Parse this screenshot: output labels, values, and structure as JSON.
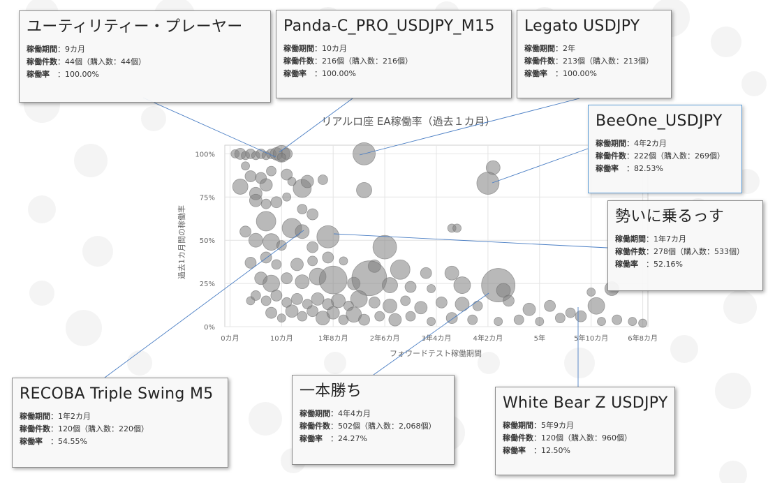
{
  "chart_data": {
    "type": "scatter",
    "title": "リアルロ座 EA稼働率（過去１カ月）",
    "xlabel": "フォワードテスト稼働期間",
    "ylabel": "過去1カ月間の稼働率",
    "x_unit": "months",
    "x_ticks": [
      {
        "value": 0,
        "label": "0カ月"
      },
      {
        "value": 10,
        "label": "10カ月"
      },
      {
        "value": 20,
        "label": "1年8カ月"
      },
      {
        "value": 30,
        "label": "2年6カ月"
      },
      {
        "value": 40,
        "label": "3年4カ月"
      },
      {
        "value": 50,
        "label": "4年2カ月"
      },
      {
        "value": 60,
        "label": "5年"
      },
      {
        "value": 70,
        "label": "5年10カ月"
      },
      {
        "value": 80,
        "label": "6年8カ月"
      }
    ],
    "y_ticks": [
      {
        "value": 0,
        "label": "0%"
      },
      {
        "value": 25,
        "label": "25%"
      },
      {
        "value": 50,
        "label": "50%"
      },
      {
        "value": 75,
        "label": "75%"
      },
      {
        "value": 100,
        "label": "100%"
      }
    ],
    "xlim": [
      -1,
      81
    ],
    "ylim": [
      0,
      105
    ],
    "grid": true,
    "bubble_color": "#7f7f7f",
    "points": [
      {
        "x": 1,
        "y": 100,
        "s": 6
      },
      {
        "x": 2,
        "y": 100,
        "s": 8
      },
      {
        "x": 3,
        "y": 99,
        "s": 6
      },
      {
        "x": 4,
        "y": 100,
        "s": 7
      },
      {
        "x": 5,
        "y": 99,
        "s": 6
      },
      {
        "x": 6,
        "y": 100,
        "s": 7
      },
      {
        "x": 7,
        "y": 99,
        "s": 6
      },
      {
        "x": 8,
        "y": 100,
        "s": 7
      },
      {
        "x": 9,
        "y": 100,
        "s": 9
      },
      {
        "x": 10,
        "y": 100,
        "s": 12
      },
      {
        "x": 11,
        "y": 100,
        "s": 8
      },
      {
        "x": 10,
        "y": 98,
        "s": 6
      },
      {
        "x": 26,
        "y": 100,
        "s": 16
      },
      {
        "x": 51,
        "y": 92,
        "s": 10
      },
      {
        "x": 50,
        "y": 83,
        "s": 16
      },
      {
        "x": 3,
        "y": 93,
        "s": 6
      },
      {
        "x": 4,
        "y": 87,
        "s": 8
      },
      {
        "x": 2,
        "y": 81,
        "s": 11
      },
      {
        "x": 5,
        "y": 77,
        "s": 9
      },
      {
        "x": 6,
        "y": 86,
        "s": 8
      },
      {
        "x": 7,
        "y": 82,
        "s": 9
      },
      {
        "x": 8,
        "y": 90,
        "s": 7
      },
      {
        "x": 11,
        "y": 88,
        "s": 8
      },
      {
        "x": 12,
        "y": 84,
        "s": 6
      },
      {
        "x": 14,
        "y": 80,
        "s": 13
      },
      {
        "x": 15,
        "y": 84,
        "s": 9
      },
      {
        "x": 18,
        "y": 85,
        "s": 7
      },
      {
        "x": 5,
        "y": 73,
        "s": 9
      },
      {
        "x": 7,
        "y": 71,
        "s": 7
      },
      {
        "x": 9,
        "y": 72,
        "s": 8
      },
      {
        "x": 11,
        "y": 75,
        "s": 6
      },
      {
        "x": 26,
        "y": 79,
        "s": 11
      },
      {
        "x": 14,
        "y": 68,
        "s": 7
      },
      {
        "x": 16,
        "y": 65,
        "s": 8
      },
      {
        "x": 7,
        "y": 61,
        "s": 14
      },
      {
        "x": 3,
        "y": 55,
        "s": 8
      },
      {
        "x": 5,
        "y": 50,
        "s": 10
      },
      {
        "x": 8,
        "y": 49,
        "s": 12
      },
      {
        "x": 12,
        "y": 57,
        "s": 14
      },
      {
        "x": 14,
        "y": 55,
        "s": 10
      },
      {
        "x": 19,
        "y": 52,
        "s": 16
      },
      {
        "x": 10,
        "y": 47,
        "s": 7
      },
      {
        "x": 16,
        "y": 46,
        "s": 8
      },
      {
        "x": 30,
        "y": 46,
        "s": 17
      },
      {
        "x": 43,
        "y": 57,
        "s": 6
      },
      {
        "x": 44,
        "y": 57,
        "s": 6
      },
      {
        "x": 4,
        "y": 37,
        "s": 8
      },
      {
        "x": 7,
        "y": 40,
        "s": 8
      },
      {
        "x": 9,
        "y": 36,
        "s": 7
      },
      {
        "x": 13,
        "y": 36,
        "s": 9
      },
      {
        "x": 16,
        "y": 38,
        "s": 7
      },
      {
        "x": 19,
        "y": 40,
        "s": 8
      },
      {
        "x": 22,
        "y": 38,
        "s": 6
      },
      {
        "x": 28,
        "y": 35,
        "s": 9
      },
      {
        "x": 33,
        "y": 33,
        "s": 14
      },
      {
        "x": 38,
        "y": 31,
        "s": 8
      },
      {
        "x": 43,
        "y": 31,
        "s": 10
      },
      {
        "x": 6,
        "y": 28,
        "s": 9
      },
      {
        "x": 8,
        "y": 25,
        "s": 12
      },
      {
        "x": 11,
        "y": 28,
        "s": 8
      },
      {
        "x": 14,
        "y": 26,
        "s": 10
      },
      {
        "x": 17,
        "y": 29,
        "s": 12
      },
      {
        "x": 20,
        "y": 27,
        "s": 20
      },
      {
        "x": 24,
        "y": 25,
        "s": 9
      },
      {
        "x": 27,
        "y": 28,
        "s": 25
      },
      {
        "x": 31,
        "y": 24,
        "s": 11
      },
      {
        "x": 35,
        "y": 23,
        "s": 8
      },
      {
        "x": 39,
        "y": 22,
        "s": 6
      },
      {
        "x": 45,
        "y": 24,
        "s": 12
      },
      {
        "x": 52,
        "y": 24,
        "s": 24
      },
      {
        "x": 53,
        "y": 21,
        "s": 10
      },
      {
        "x": 70,
        "y": 20,
        "s": 6
      },
      {
        "x": 74,
        "y": 22,
        "s": 10
      },
      {
        "x": 4,
        "y": 15,
        "s": 6
      },
      {
        "x": 5,
        "y": 18,
        "s": 7
      },
      {
        "x": 7,
        "y": 15,
        "s": 7
      },
      {
        "x": 9,
        "y": 18,
        "s": 8
      },
      {
        "x": 11,
        "y": 14,
        "s": 7
      },
      {
        "x": 13,
        "y": 16,
        "s": 8
      },
      {
        "x": 15,
        "y": 13,
        "s": 7
      },
      {
        "x": 17,
        "y": 16,
        "s": 9
      },
      {
        "x": 19,
        "y": 13,
        "s": 8
      },
      {
        "x": 21,
        "y": 15,
        "s": 10
      },
      {
        "x": 23,
        "y": 12,
        "s": 7
      },
      {
        "x": 25,
        "y": 16,
        "s": 12
      },
      {
        "x": 28,
        "y": 14,
        "s": 8
      },
      {
        "x": 31,
        "y": 12,
        "s": 10
      },
      {
        "x": 34,
        "y": 15,
        "s": 7
      },
      {
        "x": 37,
        "y": 11,
        "s": 9
      },
      {
        "x": 41,
        "y": 14,
        "s": 8
      },
      {
        "x": 45,
        "y": 13,
        "s": 10
      },
      {
        "x": 48,
        "y": 12,
        "s": 7
      },
      {
        "x": 54,
        "y": 15,
        "s": 8
      },
      {
        "x": 58,
        "y": 10,
        "s": 9
      },
      {
        "x": 62,
        "y": 12,
        "s": 8
      },
      {
        "x": 71,
        "y": 12,
        "s": 12
      },
      {
        "x": 66,
        "y": 8,
        "s": 7
      },
      {
        "x": 8,
        "y": 8,
        "s": 8
      },
      {
        "x": 10,
        "y": 5,
        "s": 6
      },
      {
        "x": 12,
        "y": 9,
        "s": 9
      },
      {
        "x": 14,
        "y": 6,
        "s": 7
      },
      {
        "x": 16,
        "y": 9,
        "s": 8
      },
      {
        "x": 18,
        "y": 5,
        "s": 10
      },
      {
        "x": 20,
        "y": 8,
        "s": 9
      },
      {
        "x": 22,
        "y": 4,
        "s": 7
      },
      {
        "x": 24,
        "y": 7,
        "s": 11
      },
      {
        "x": 26,
        "y": 4,
        "s": 8
      },
      {
        "x": 29,
        "y": 6,
        "s": 7
      },
      {
        "x": 32,
        "y": 4,
        "s": 9
      },
      {
        "x": 35,
        "y": 6,
        "s": 7
      },
      {
        "x": 39,
        "y": 3,
        "s": 6
      },
      {
        "x": 43,
        "y": 5,
        "s": 8
      },
      {
        "x": 47,
        "y": 4,
        "s": 7
      },
      {
        "x": 52,
        "y": 3,
        "s": 6
      },
      {
        "x": 56,
        "y": 4,
        "s": 7
      },
      {
        "x": 60,
        "y": 3,
        "s": 6
      },
      {
        "x": 64,
        "y": 5,
        "s": 7
      },
      {
        "x": 68,
        "y": 6,
        "s": 8
      },
      {
        "x": 72,
        "y": 3,
        "s": 6
      },
      {
        "x": 75,
        "y": 4,
        "s": 7
      },
      {
        "x": 78,
        "y": 3,
        "s": 6
      },
      {
        "x": 80,
        "y": 2,
        "s": 6
      }
    ]
  },
  "callouts": [
    {
      "id": "utility",
      "title": "ユーティリティー・プレーヤー",
      "period_label": "稼働期間",
      "period": "：9カ月",
      "count_label": "稼働件数",
      "count": "：44個（購入数：44個）",
      "rate_label": "稼働率",
      "rate": "　：100.00%"
    },
    {
      "id": "panda",
      "title": "Panda-C_PRO_USDJPY_M15",
      "period_label": "稼働期間",
      "period": "：10カ月",
      "count_label": "稼働件数",
      "count": "：216個（購入数：216個）",
      "rate_label": "稼働率",
      "rate": "　：100.00%"
    },
    {
      "id": "legato",
      "title": "Legato USDJPY",
      "period_label": "稼働期間",
      "period": "：2年",
      "count_label": "稼働件数",
      "count": "：213個（購入数：213個）",
      "rate_label": "稼働率",
      "rate": "　：100.00%"
    },
    {
      "id": "beeone",
      "title": "BeeOne_USDJPY",
      "period_label": "稼働期間",
      "period": "：4年2カ月",
      "count_label": "稼働件数",
      "count": "：222個（購入数：269個）",
      "rate_label": "稼働率",
      "rate": "　：82.53%"
    },
    {
      "id": "ikioi",
      "title": "勢いに乗るっす",
      "period_label": "稼働期間",
      "period": "：1年7カ月",
      "count_label": "稼働件数",
      "count": "：278個（購入数：533個）",
      "rate_label": "稼働率",
      "rate": "　：52.16%"
    },
    {
      "id": "recoba",
      "title": "RECOBA Triple Swing M5",
      "period_label": "稼働期間",
      "period": "：1年2カ月",
      "count_label": "稼働件数",
      "count": "：120個（購入数：220個）",
      "rate_label": "稼働率",
      "rate": "　：54.55%"
    },
    {
      "id": "ippon",
      "title": "一本勝ち",
      "period_label": "稼働期間",
      "period": "：4年4カ月",
      "count_label": "稼働件数",
      "count": "：502個（購入数：2,068個）",
      "rate_label": "稼働率",
      "rate": "　：24.27%"
    },
    {
      "id": "whitebear",
      "title": "White Bear Z USDJPY",
      "period_label": "稼働期間",
      "period": "：5年9カ月",
      "count_label": "稼働件数",
      "count": "：120個（購入数：960個）",
      "rate_label": "稼働率",
      "rate": "　：12.50%"
    }
  ]
}
